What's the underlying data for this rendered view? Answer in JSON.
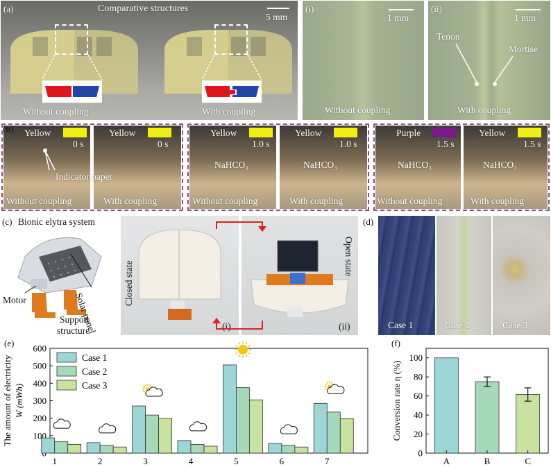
{
  "panel_a": {
    "label": "(a)",
    "title": "Comparative structures",
    "scale": "5 mm",
    "left_caption": "Without coupling",
    "right_caption": "With coupling"
  },
  "panel_i_top": {
    "label": "(i)",
    "scale": "1 mm",
    "caption": "Without coupling"
  },
  "panel_ii_top": {
    "label": "(ii)",
    "scale": "1 mm",
    "caption": "With coupling",
    "tenon": "Tenon",
    "mortise": "Mortise"
  },
  "panel_b": {
    "label": "(b)",
    "indicator": "Indicator paper",
    "tiles": [
      {
        "color_name": "Yellow",
        "swatch": "#f2ee10",
        "time": "0 s",
        "reagent": "",
        "caption": "Without coupling"
      },
      {
        "color_name": "Yellow",
        "swatch": "#f2ee10",
        "time": "0 s",
        "reagent": "",
        "caption": "With coupling"
      },
      {
        "color_name": "Yellow",
        "swatch": "#f2ee10",
        "time": "1.0 s",
        "reagent": "NaHCO₃",
        "caption": "Without coupling"
      },
      {
        "color_name": "Yellow",
        "swatch": "#f2ee10",
        "time": "1.0 s",
        "reagent": "NaHCO₃",
        "caption": "With coupling"
      },
      {
        "color_name": "Purple",
        "swatch": "#7a1a8c",
        "time": "1.5 s",
        "reagent": "NaHCO₃",
        "caption": "Without coupling"
      },
      {
        "color_name": "Yellow",
        "swatch": "#f2ee10",
        "time": "1.5 s",
        "reagent": "NaHCO₃",
        "caption": "With coupling"
      }
    ]
  },
  "panel_c": {
    "label": "(c)",
    "title": "Bionic elytra system",
    "motor": "Motor",
    "support": "Support",
    "structure": "structure",
    "solar_panel": "Solar panel",
    "closed_state": "Closed state",
    "open_state": "Open state",
    "sub_i": "(i)",
    "sub_ii": "(ii)"
  },
  "panel_d": {
    "label": "(d)",
    "cases": [
      "Case 1",
      "Case 2",
      "Case 3"
    ]
  },
  "chart_data": [
    {
      "type": "bar",
      "panel": "(e)",
      "categories": [
        "1",
        "2",
        "3",
        "4",
        "5",
        "6",
        "7"
      ],
      "series": [
        {
          "name": "Case 1",
          "color": "#9dd6d6",
          "values": [
            87,
            60,
            270,
            72,
            505,
            55,
            285
          ]
        },
        {
          "name": "Case 2",
          "color": "#a6d8ba",
          "values": [
            65,
            45,
            218,
            50,
            375,
            45,
            235
          ]
        },
        {
          "name": "Case 3",
          "color": "#c8e2a0",
          "values": [
            50,
            35,
            198,
            40,
            305,
            35,
            197
          ]
        }
      ],
      "weather": [
        "cloud",
        "cloud",
        "sun-cloud",
        "cloud",
        "sun",
        "cloud",
        "sun-cloud"
      ],
      "ylabel_line1": "The amount of electricity",
      "ylabel_line2": "W (mWh)",
      "ylim": [
        0,
        600
      ],
      "yticks": [
        "0",
        "100",
        "200",
        "300",
        "400",
        "500",
        "600"
      ],
      "legend_position": "top-left"
    },
    {
      "type": "bar",
      "panel": "(f)",
      "categories": [
        "A",
        "B",
        "C"
      ],
      "values": [
        100,
        75,
        61.5
      ],
      "errors": [
        0,
        5,
        7
      ],
      "colors": [
        "#9dd6d6",
        "#a6d8ba",
        "#c8e2a0"
      ],
      "ylabel": "Conversion rate η (%)",
      "ylim": [
        0,
        110
      ],
      "yticks": [
        "0",
        "20",
        "40",
        "60",
        "80",
        "100"
      ]
    }
  ]
}
